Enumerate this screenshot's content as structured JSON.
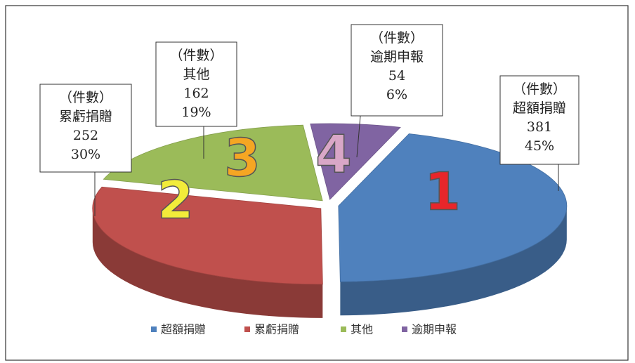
{
  "chart_data": {
    "type": "pie3d",
    "categories": [
      "超額捐贈",
      "累虧捐贈",
      "其他",
      "逾期申報"
    ],
    "values": [
      381,
      252,
      162,
      54
    ],
    "percent_labels": [
      "45%",
      "30%",
      "19%",
      "6%"
    ],
    "unit_label": "（件數）",
    "slice_labels": [
      "1",
      "2",
      "3",
      "4"
    ],
    "colors": [
      "#4f81bd",
      "#c0504d",
      "#9bbb59",
      "#8064a2"
    ],
    "legend": "bottom"
  }
}
